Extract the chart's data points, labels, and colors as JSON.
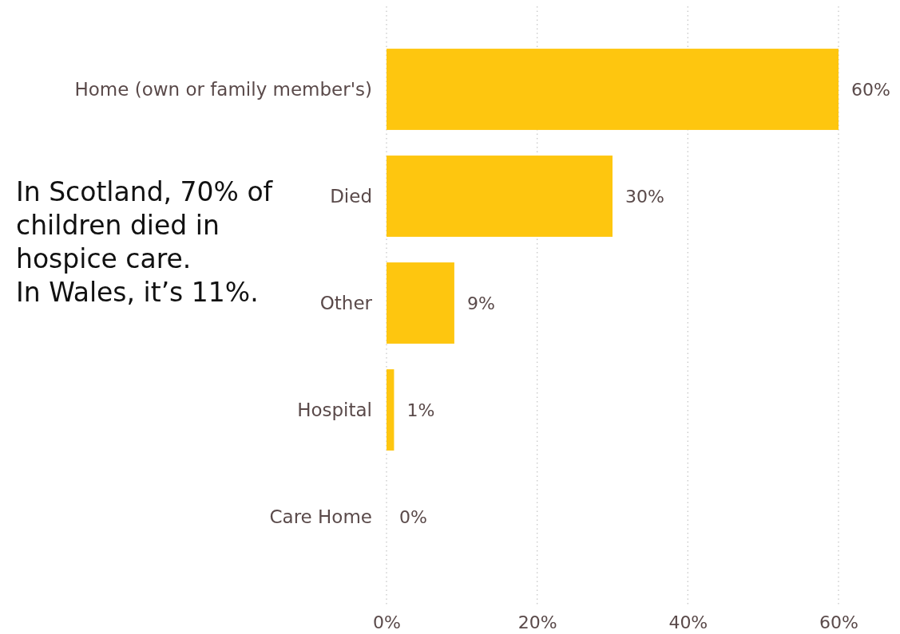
{
  "chart_data": {
    "type": "bar",
    "orientation": "horizontal",
    "categories": [
      "Home (own or family member's)",
      "Died",
      "Other",
      "Hospital",
      "Care Home"
    ],
    "values": [
      60,
      30,
      9,
      1,
      0
    ],
    "value_labels": [
      "60%",
      "30%",
      "9%",
      "1%",
      "0%"
    ],
    "color": "#fec60f",
    "xlim": [
      0,
      60
    ],
    "xticks": [
      {
        "value": 0,
        "label": "0%"
      },
      {
        "value": 20,
        "label": "20%"
      },
      {
        "value": 40,
        "label": "40%"
      },
      {
        "value": 60,
        "label": "60%"
      }
    ],
    "grid": "x",
    "annotations": [
      "In Scotland, 70% of children died in hospice care.",
      "In Wales, it’s 11%."
    ]
  }
}
